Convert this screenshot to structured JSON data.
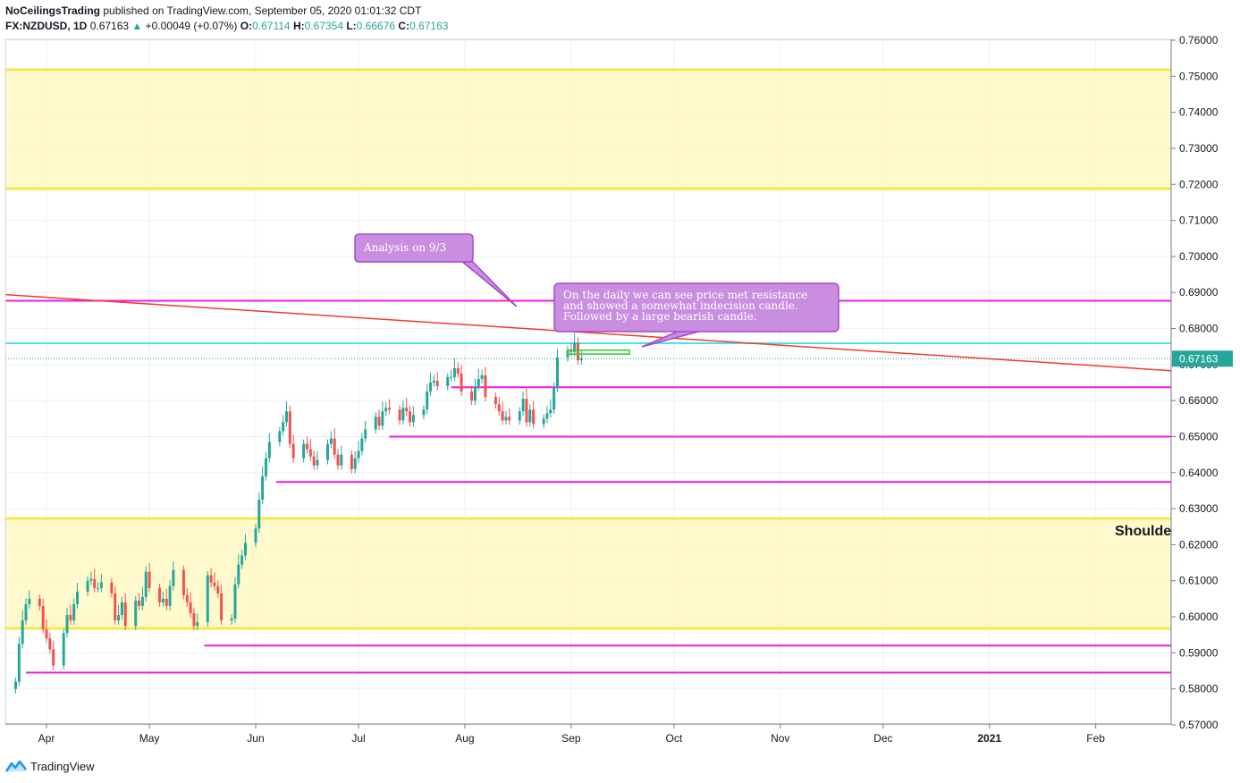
{
  "header": {
    "author": "NoCeilingsTrading",
    "published": "published on TradingView.com, September 05, 2020 01:01:32 CDT",
    "symbol": "FX:NZDUSD, 1D",
    "last": "0.67163",
    "change": "+0.00049 (+0.07%)",
    "o_label": "O:",
    "o": "0.67114",
    "h_label": "H:",
    "h": "0.67354",
    "l_label": "L:",
    "l": "0.66676",
    "c_label": "C:",
    "c": "0.67163"
  },
  "footer": {
    "brand": "TradingView"
  },
  "colors": {
    "up": "#26a69a",
    "down": "#ef5350",
    "zone": "#fff9c4",
    "zone_edge": "#f6e84a",
    "level": "#e91ee6",
    "trend": "#f23b2d",
    "cyan": "#4de1f0",
    "callout": "#c98ee0"
  },
  "chart_data": {
    "type": "candlestick",
    "y_ticks": [
      "0.76000",
      "0.75000",
      "0.74000",
      "0.73000",
      "0.72000",
      "0.71000",
      "0.70000",
      "0.69000",
      "0.68000",
      "0.67000",
      "0.66000",
      "0.65000",
      "0.64000",
      "0.63000",
      "0.62000",
      "0.61000",
      "0.60000",
      "0.59000",
      "0.58000",
      "0.57000"
    ],
    "ylim": [
      0.57,
      0.76
    ],
    "x_ticks": [
      "Apr",
      "May",
      "Jun",
      "Jul",
      "Aug",
      "Sep",
      "Oct",
      "Nov",
      "Dec",
      "2021",
      "Feb"
    ],
    "x_range": [
      "2020-03-20",
      "2021-02-23"
    ],
    "last_price_label": "0.67163",
    "zones": [
      {
        "from": 0.7188,
        "to": 0.7518
      },
      {
        "from": 0.5968,
        "to": 0.6273
      }
    ],
    "levels": [
      {
        "price": 0.6877,
        "from": "2020-03-20",
        "extend": "right"
      },
      {
        "price": 0.6637,
        "from": "2020-07-28",
        "extend": "right"
      },
      {
        "price": 0.65,
        "from": "2020-07-10",
        "extend": "right"
      },
      {
        "price": 0.6374,
        "from": "2020-06-07",
        "extend": "right"
      },
      {
        "price": 0.592,
        "from": "2020-05-17",
        "extend": "right"
      },
      {
        "price": 0.5845,
        "from": "2020-03-26",
        "extend": "right"
      }
    ],
    "cyan_level": 0.6759,
    "trendline": [
      {
        "date": "2020-03-20",
        "price": 0.6894
      },
      {
        "date": "2021-02-23",
        "price": 0.6683
      }
    ],
    "annotations": [
      {
        "text": "Analysis on 9/3"
      },
      {
        "lines": [
          "On the daily we can see price met resistance",
          "and showed a somewhat indecision candle.",
          "Followed by a large bearish candle."
        ]
      },
      {
        "text": "Shoulde"
      }
    ],
    "closes": [
      [
        "2020-03-23",
        0.582
      ],
      [
        "2020-03-24",
        0.5925
      ],
      [
        "2020-03-25",
        0.599
      ],
      [
        "2020-03-26",
        0.6035
      ],
      [
        "2020-03-27",
        0.605
      ],
      [
        "2020-03-30",
        0.603
      ],
      [
        "2020-03-31",
        0.5965
      ],
      [
        "2020-04-01",
        0.594
      ],
      [
        "2020-04-02",
        0.591
      ],
      [
        "2020-04-03",
        0.5865
      ],
      [
        "2020-04-06",
        0.5955
      ],
      [
        "2020-04-07",
        0.6005
      ],
      [
        "2020-04-08",
        0.599
      ],
      [
        "2020-04-09",
        0.6035
      ],
      [
        "2020-04-10",
        0.607
      ],
      [
        "2020-04-13",
        0.61
      ],
      [
        "2020-04-14",
        0.6105
      ],
      [
        "2020-04-15",
        0.608
      ],
      [
        "2020-04-16",
        0.608
      ],
      [
        "2020-04-17",
        0.6095
      ],
      [
        "2020-04-20",
        0.6065
      ],
      [
        "2020-04-21",
        0.599
      ],
      [
        "2020-04-22",
        0.6005
      ],
      [
        "2020-04-23",
        0.604
      ],
      [
        "2020-04-24",
        0.5975
      ],
      [
        "2020-04-27",
        0.6045
      ],
      [
        "2020-04-28",
        0.603
      ],
      [
        "2020-04-29",
        0.6055
      ],
      [
        "2020-04-30",
        0.6125
      ],
      [
        "2020-05-01",
        0.608
      ],
      [
        "2020-05-04",
        0.604
      ],
      [
        "2020-05-05",
        0.605
      ],
      [
        "2020-05-06",
        0.603
      ],
      [
        "2020-05-07",
        0.6085
      ],
      [
        "2020-05-08",
        0.613
      ],
      [
        "2020-05-11",
        0.606
      ],
      [
        "2020-05-12",
        0.604
      ],
      [
        "2020-05-13",
        0.601
      ],
      [
        "2020-05-14",
        0.5975
      ],
      [
        "2020-05-15",
        0.5985
      ],
      [
        "2020-05-18",
        0.6115
      ],
      [
        "2020-05-19",
        0.6095
      ],
      [
        "2020-05-20",
        0.6085
      ],
      [
        "2020-05-21",
        0.6065
      ],
      [
        "2020-05-22",
        0.599
      ],
      [
        "2020-05-25",
        0.5995
      ],
      [
        "2020-05-26",
        0.609
      ],
      [
        "2020-05-27",
        0.6145
      ],
      [
        "2020-05-28",
        0.617
      ],
      [
        "2020-05-29",
        0.6205
      ],
      [
        "2020-06-01",
        0.6245
      ],
      [
        "2020-06-02",
        0.6325
      ],
      [
        "2020-06-03",
        0.639
      ],
      [
        "2020-06-04",
        0.644
      ],
      [
        "2020-06-05",
        0.6485
      ],
      [
        "2020-06-08",
        0.6515
      ],
      [
        "2020-06-09",
        0.654
      ],
      [
        "2020-06-10",
        0.657
      ],
      [
        "2020-06-11",
        0.648
      ],
      [
        "2020-06-12",
        0.644
      ],
      [
        "2020-06-15",
        0.648
      ],
      [
        "2020-06-16",
        0.6465
      ],
      [
        "2020-06-17",
        0.6445
      ],
      [
        "2020-06-18",
        0.642
      ],
      [
        "2020-06-19",
        0.6435
      ],
      [
        "2020-06-22",
        0.648
      ],
      [
        "2020-06-23",
        0.6495
      ],
      [
        "2020-06-24",
        0.645
      ],
      [
        "2020-06-25",
        0.642
      ],
      [
        "2020-06-26",
        0.645
      ],
      [
        "2020-06-29",
        0.641
      ],
      [
        "2020-06-30",
        0.644
      ],
      [
        "2020-07-01",
        0.646
      ],
      [
        "2020-07-02",
        0.6495
      ],
      [
        "2020-07-03",
        0.652
      ],
      [
        "2020-07-06",
        0.6555
      ],
      [
        "2020-07-07",
        0.653
      ],
      [
        "2020-07-08",
        0.657
      ],
      [
        "2020-07-09",
        0.658
      ],
      [
        "2020-07-10",
        0.6575
      ],
      [
        "2020-07-13",
        0.6545
      ],
      [
        "2020-07-14",
        0.658
      ],
      [
        "2020-07-15",
        0.657
      ],
      [
        "2020-07-16",
        0.654
      ],
      [
        "2020-07-17",
        0.656
      ],
      [
        "2020-07-20",
        0.6575
      ],
      [
        "2020-07-21",
        0.6625
      ],
      [
        "2020-07-22",
        0.665
      ],
      [
        "2020-07-23",
        0.6655
      ],
      [
        "2020-07-24",
        0.664
      ],
      [
        "2020-07-27",
        0.6665
      ],
      [
        "2020-07-28",
        0.6665
      ],
      [
        "2020-07-29",
        0.669
      ],
      [
        "2020-07-30",
        0.6675
      ],
      [
        "2020-07-31",
        0.6625
      ],
      [
        "2020-08-03",
        0.66
      ],
      [
        "2020-08-04",
        0.664
      ],
      [
        "2020-08-05",
        0.666
      ],
      [
        "2020-08-06",
        0.667
      ],
      [
        "2020-08-07",
        0.661
      ],
      [
        "2020-08-10",
        0.659
      ],
      [
        "2020-08-11",
        0.657
      ],
      [
        "2020-08-12",
        0.6545
      ],
      [
        "2020-08-13",
        0.6555
      ],
      [
        "2020-08-14",
        0.6545
      ],
      [
        "2020-08-17",
        0.657
      ],
      [
        "2020-08-18",
        0.6605
      ],
      [
        "2020-08-19",
        0.654
      ],
      [
        "2020-08-20",
        0.6575
      ],
      [
        "2020-08-21",
        0.6535
      ],
      [
        "2020-08-24",
        0.655
      ],
      [
        "2020-08-25",
        0.6565
      ],
      [
        "2020-08-26",
        0.6575
      ],
      [
        "2020-08-27",
        0.6635
      ],
      [
        "2020-08-28",
        0.672
      ],
      [
        "2020-08-31",
        0.674
      ],
      [
        "2020-09-01",
        0.6735
      ],
      [
        "2020-09-02",
        0.676
      ],
      [
        "2020-09-03",
        0.6712
      ],
      [
        "2020-09-04",
        0.6716
      ]
    ]
  }
}
